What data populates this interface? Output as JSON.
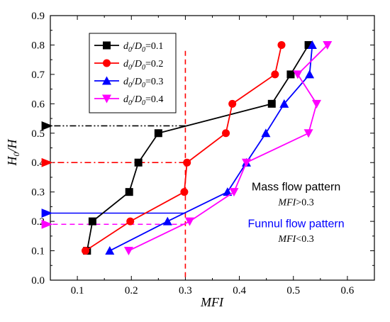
{
  "chart_data": {
    "type": "line",
    "xlabel": "MFI",
    "ylabel": "H0/H",
    "xlim": [
      0.05,
      0.65
    ],
    "ylim": [
      0.0,
      0.9
    ],
    "xticks": [
      "0.1",
      "0.2",
      "0.3",
      "0.4",
      "0.5",
      "0.6"
    ],
    "yticks": [
      "0.0",
      "0.1",
      "0.2",
      "0.3",
      "0.4",
      "0.5",
      "0.6",
      "0.7",
      "0.8",
      "0.9"
    ],
    "legend_position": "top-left",
    "series": [
      {
        "label_sub": "0.1",
        "color": "#000000",
        "marker": "square",
        "points": [
          [
            0.118,
            0.1
          ],
          [
            0.128,
            0.2
          ],
          [
            0.196,
            0.3
          ],
          [
            0.213,
            0.4
          ],
          [
            0.25,
            0.5
          ],
          [
            0.46,
            0.6
          ],
          [
            0.495,
            0.7
          ],
          [
            0.528,
            0.8
          ]
        ]
      },
      {
        "label_sub": "0.2",
        "color": "#ff0000",
        "marker": "circle",
        "points": [
          [
            0.115,
            0.1
          ],
          [
            0.198,
            0.2
          ],
          [
            0.298,
            0.3
          ],
          [
            0.303,
            0.4
          ],
          [
            0.375,
            0.5
          ],
          [
            0.387,
            0.6
          ],
          [
            0.466,
            0.7
          ],
          [
            0.478,
            0.8
          ]
        ]
      },
      {
        "label_sub": "0.3",
        "color": "#0000ff",
        "marker": "triangle-up",
        "points": [
          [
            0.16,
            0.1
          ],
          [
            0.267,
            0.2
          ],
          [
            0.378,
            0.3
          ],
          [
            0.413,
            0.4
          ],
          [
            0.449,
            0.5
          ],
          [
            0.483,
            0.6
          ],
          [
            0.53,
            0.7
          ],
          [
            0.535,
            0.8
          ]
        ]
      },
      {
        "label_sub": "0.4",
        "color": "#ff00ff",
        "marker": "triangle-down",
        "points": [
          [
            0.195,
            0.1
          ],
          [
            0.308,
            0.2
          ],
          [
            0.39,
            0.3
          ],
          [
            0.413,
            0.4
          ],
          [
            0.528,
            0.5
          ],
          [
            0.543,
            0.6
          ],
          [
            0.508,
            0.7
          ],
          [
            0.563,
            0.8
          ]
        ]
      }
    ],
    "reference_lines": [
      {
        "type": "vertical",
        "x": 0.3,
        "color": "#ff0000",
        "style": "dashed"
      },
      {
        "type": "arrow",
        "from": [
          0.3,
          0.525
        ],
        "to": [
          0.05,
          0.525
        ],
        "color": "#000000",
        "style": "dashdotdot"
      },
      {
        "type": "arrow",
        "from": [
          0.3,
          0.4
        ],
        "to": [
          0.05,
          0.4
        ],
        "color": "#ff0000",
        "style": "dashdot"
      },
      {
        "type": "arrow",
        "from": [
          0.3,
          0.228
        ],
        "to": [
          0.05,
          0.228
        ],
        "color": "#0000ff",
        "style": "solid"
      },
      {
        "type": "arrow",
        "from": [
          0.3,
          0.19
        ],
        "to": [
          0.05,
          0.19
        ],
        "color": "#ff00ff",
        "style": "dashed"
      }
    ],
    "annotations": [
      {
        "text": "Mass flow pattern",
        "color": "#000000",
        "kind": "title",
        "x": 0.505,
        "y": 0.305
      },
      {
        "text": "MFI>0.3",
        "color": "#000000",
        "kind": "sub",
        "x": 0.505,
        "y": 0.255
      },
      {
        "text": "Funnul flow pattern",
        "color": "#0000ff",
        "kind": "title",
        "x": 0.505,
        "y": 0.18
      },
      {
        "text": "MFI<0.3",
        "color": "#000000",
        "kind": "sub",
        "x": 0.505,
        "y": 0.13
      }
    ]
  }
}
